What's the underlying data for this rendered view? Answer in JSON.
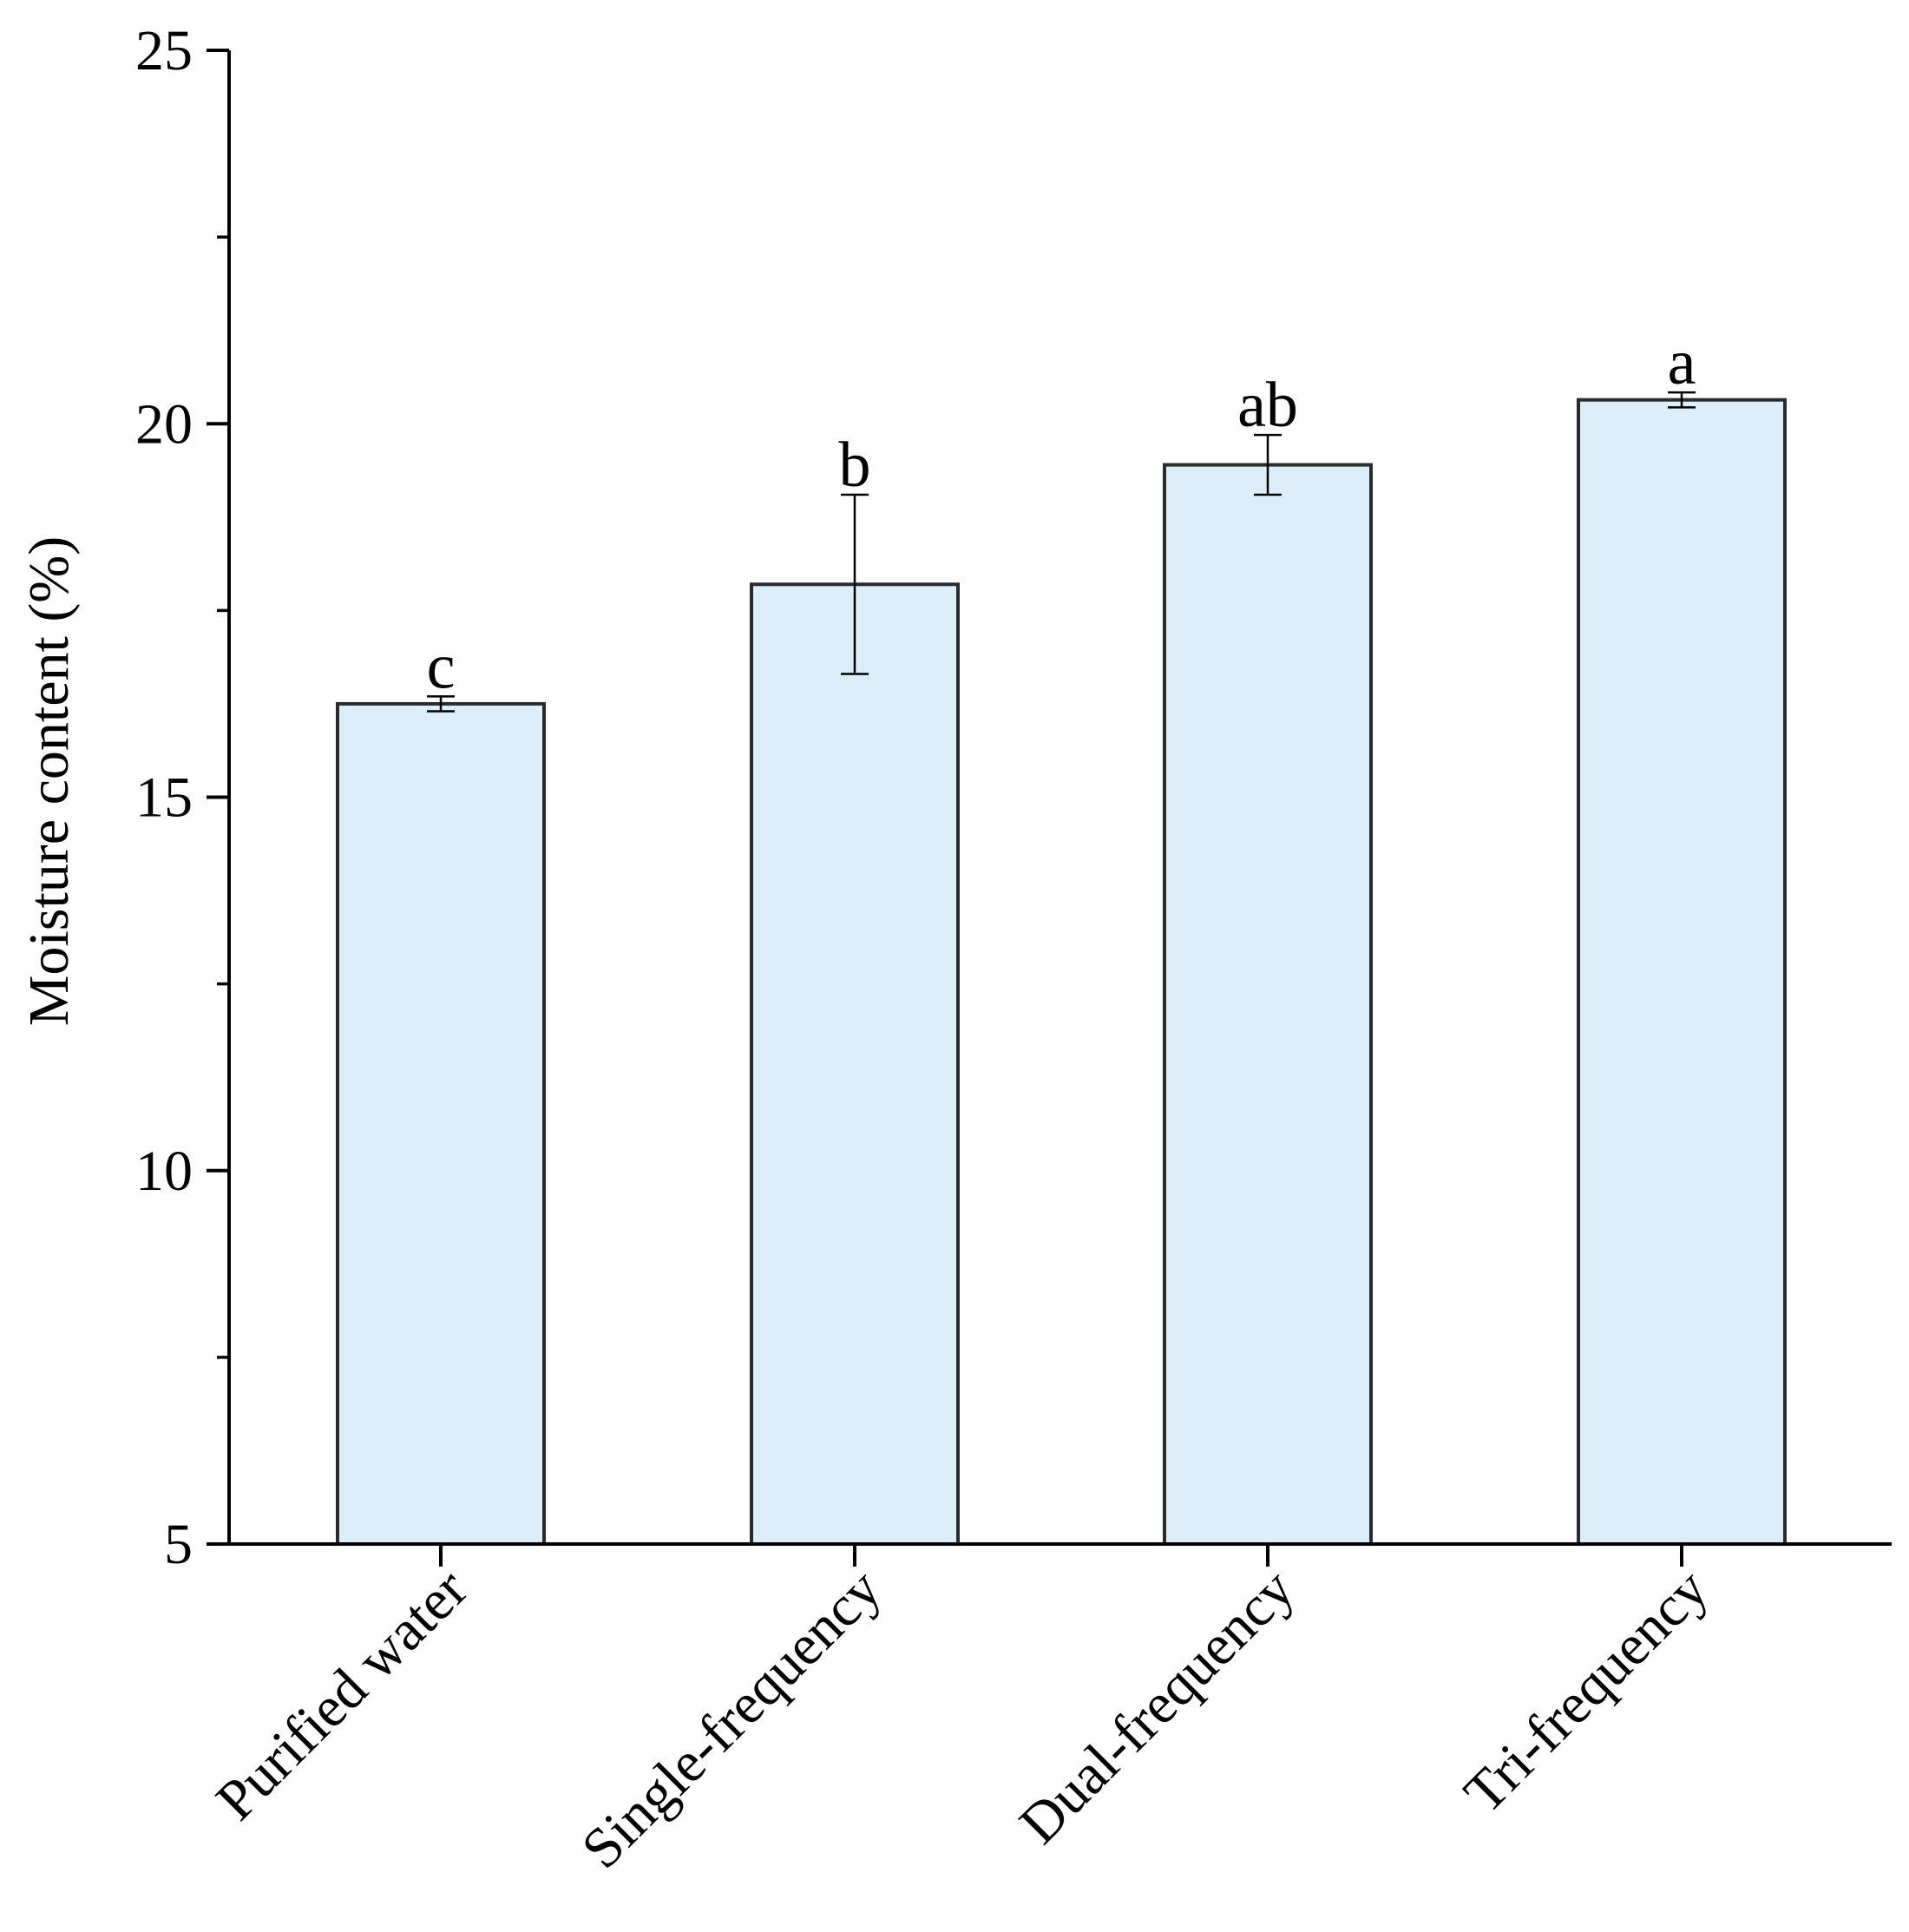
{
  "chart_data": {
    "type": "bar",
    "title": "",
    "xlabel": "",
    "ylabel": "Moisture content (%)",
    "ylim": [
      5,
      25
    ],
    "yticks": [
      5,
      10,
      15,
      20,
      25
    ],
    "yminor_ticks": [
      7.5,
      12.5,
      17.5,
      22.5
    ],
    "grid": false,
    "legend": "none",
    "categories": [
      "Purified water",
      "Single-frequency",
      "Dual-frequency",
      "Tri-frequency"
    ],
    "values": [
      16.25,
      17.85,
      19.45,
      20.32
    ],
    "errors": [
      0.1,
      1.2,
      0.4,
      0.1
    ],
    "significance_labels": [
      "c",
      "b",
      "ab",
      "a"
    ],
    "colors": {
      "bar_fill": "#dbeefa",
      "bar_stroke": "#2b2b2b",
      "axis": "#000000"
    }
  }
}
